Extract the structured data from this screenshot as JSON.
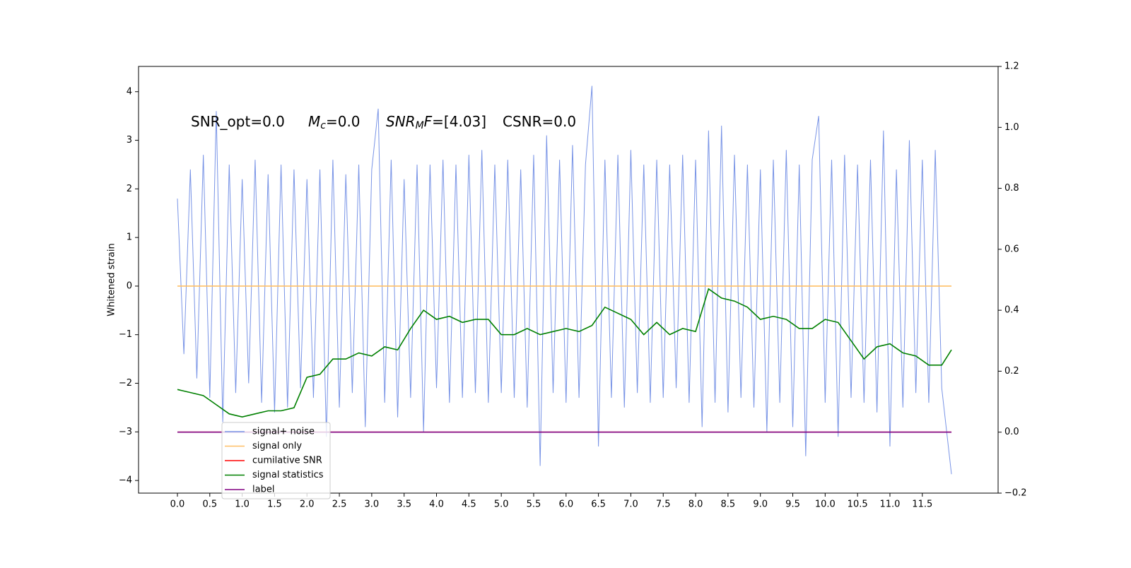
{
  "chart_data": {
    "type": "line",
    "ylabel": "Whitened strain",
    "annotations": [
      {
        "text": "SNR_opt=0.0"
      },
      {
        "main": "M",
        "sub": "c",
        "rest": "=0.0"
      },
      {
        "main": "SNR",
        "sub": "M",
        "main2": "F",
        "rest": "=[4.03]"
      },
      {
        "text": "CSNR=0.0"
      }
    ],
    "xlim": [
      -0.6,
      12.67
    ],
    "xticks": [
      {
        "value": 0,
        "label": "0.0"
      },
      {
        "value": 0.5,
        "label": "0.5"
      },
      {
        "value": 1,
        "label": "1.0"
      },
      {
        "value": 1.5,
        "label": "1.5"
      },
      {
        "value": 2,
        "label": "2.0"
      },
      {
        "value": 2.5,
        "label": "2.5"
      },
      {
        "value": 3,
        "label": "3.0"
      },
      {
        "value": 3.5,
        "label": "3.5"
      },
      {
        "value": 4,
        "label": "4.0"
      },
      {
        "value": 4.5,
        "label": "4.5"
      },
      {
        "value": 5,
        "label": "5.0"
      },
      {
        "value": 5.5,
        "label": "5.5"
      },
      {
        "value": 6,
        "label": "6.0"
      },
      {
        "value": 6.5,
        "label": "6.5"
      },
      {
        "value": 7,
        "label": "7.0"
      },
      {
        "value": 7.5,
        "label": "7.5"
      },
      {
        "value": 8,
        "label": "8.0"
      },
      {
        "value": 8.5,
        "label": "8.5"
      },
      {
        "value": 9,
        "label": "9.0"
      },
      {
        "value": 9.5,
        "label": "9.5"
      },
      {
        "value": 10,
        "label": "10.0"
      },
      {
        "value": 10.5,
        "label": "10.5"
      },
      {
        "value": 11,
        "label": "11.0"
      },
      {
        "value": 11.5,
        "label": "11.5"
      }
    ],
    "ylim": [
      -4.26,
      4.52
    ],
    "yticks": [
      {
        "value": -4,
        "label": "−4"
      },
      {
        "value": -3,
        "label": "−3"
      },
      {
        "value": -2,
        "label": "−2"
      },
      {
        "value": -1,
        "label": "−1"
      },
      0,
      1,
      2,
      3,
      4
    ],
    "y2lim": [
      -0.2,
      1.2
    ],
    "y2ticks": [
      {
        "value": -0.2,
        "label": "−0.2"
      },
      {
        "value": 0,
        "label": "0.0"
      },
      0.2,
      0.4,
      0.6,
      0.8,
      {
        "value": 1,
        "label": "1.0"
      },
      1.2
    ],
    "legend": "lower-left",
    "series": [
      {
        "name": "signal+ noise",
        "color": "#7994e6",
        "x": [
          0,
          0.1,
          0.2,
          0.3,
          0.4,
          0.5,
          0.6,
          0.7,
          0.8,
          0.9,
          1,
          1.1,
          1.2,
          1.3,
          1.4,
          1.5,
          1.6,
          1.7,
          1.8,
          1.9,
          2,
          2.1,
          2.2,
          2.3,
          2.4,
          2.5,
          2.6,
          2.7,
          2.8,
          2.9,
          3,
          3.1,
          3.2,
          3.3,
          3.4,
          3.5,
          3.6,
          3.7,
          3.8,
          3.9,
          4,
          4.1,
          4.2,
          4.3,
          4.4,
          4.5,
          4.6,
          4.7,
          4.8,
          4.9,
          5,
          5.1,
          5.2,
          5.3,
          5.4,
          5.5,
          5.6,
          5.7,
          5.8,
          5.9,
          6,
          6.1,
          6.2,
          6.3,
          6.4,
          6.5,
          6.6,
          6.7,
          6.8,
          6.9,
          7,
          7.1,
          7.2,
          7.3,
          7.4,
          7.5,
          7.6,
          7.7,
          7.8,
          7.9,
          8,
          8.1,
          8.2,
          8.3,
          8.4,
          8.5,
          8.6,
          8.7,
          8.8,
          8.9,
          9,
          9.1,
          9.2,
          9.3,
          9.4,
          9.5,
          9.6,
          9.7,
          9.8,
          9.9,
          10,
          10.1,
          10.2,
          10.3,
          10.4,
          10.5,
          10.6,
          10.7,
          10.8,
          10.9,
          11,
          11.1,
          11.2,
          11.3,
          11.4,
          11.5,
          11.6,
          11.7,
          11.8,
          11.95
        ],
        "values": [
          1.8,
          -1.4,
          2.4,
          -1.9,
          2.7,
          -2.3,
          3.6,
          -2.8,
          2.5,
          -2.2,
          2.2,
          -2.0,
          2.6,
          -2.4,
          2.3,
          -2.6,
          2.5,
          -2.5,
          2.4,
          -2.1,
          2.2,
          -2.3,
          2.4,
          -3.1,
          2.6,
          -2.5,
          2.3,
          -2.2,
          2.5,
          -2.9,
          2.4,
          3.65,
          -2.4,
          2.6,
          -2.7,
          2.2,
          -2.3,
          2.5,
          -3.0,
          2.5,
          -2.1,
          2.6,
          -2.4,
          2.5,
          -2.3,
          2.7,
          -2.2,
          2.8,
          -2.4,
          2.5,
          -2.2,
          2.6,
          -2.3,
          2.4,
          -2.5,
          2.7,
          -3.7,
          3.1,
          -2.2,
          2.6,
          -2.4,
          2.9,
          -2.3,
          2.5,
          4.12,
          -3.3,
          2.6,
          -2.3,
          2.7,
          -2.5,
          2.8,
          -2.2,
          2.5,
          -2.4,
          2.6,
          -2.3,
          2.5,
          -2.1,
          2.7,
          -2.4,
          2.6,
          -2.9,
          3.2,
          -2.4,
          3.3,
          -2.6,
          2.7,
          -2.3,
          2.5,
          -2.5,
          2.4,
          -3.0,
          2.6,
          -2.4,
          2.8,
          -2.9,
          2.5,
          -3.5,
          2.6,
          3.5,
          -2.4,
          2.6,
          -3.1,
          2.7,
          -2.3,
          2.5,
          -2.4,
          2.6,
          -2.6,
          3.2,
          -3.3,
          2.4,
          -2.5,
          3.0,
          -2.2,
          2.6,
          -2.4,
          2.8,
          -2.1,
          -3.87
        ]
      },
      {
        "name": "signal only",
        "color": "#ffbf66",
        "x": [
          0,
          11.95
        ],
        "values": [
          0,
          0
        ]
      },
      {
        "name": "cumilative SNR",
        "color": "#ff0000",
        "axis": "y2",
        "x": [
          0,
          11.95
        ],
        "values": [
          0,
          0
        ]
      },
      {
        "name": "signal statistics",
        "color": "#008000",
        "axis": "y2",
        "x": [
          0,
          0.2,
          0.4,
          0.6,
          0.8,
          1,
          1.2,
          1.4,
          1.6,
          1.8,
          2,
          2.2,
          2.4,
          2.6,
          2.8,
          3,
          3.2,
          3.4,
          3.6,
          3.8,
          4,
          4.2,
          4.4,
          4.6,
          4.8,
          5,
          5.2,
          5.4,
          5.6,
          5.8,
          6,
          6.2,
          6.4,
          6.6,
          6.8,
          7,
          7.2,
          7.4,
          7.6,
          7.8,
          8,
          8.2,
          8.4,
          8.6,
          8.8,
          9,
          9.2,
          9.4,
          9.6,
          9.8,
          10,
          10.2,
          10.4,
          10.6,
          10.8,
          11,
          11.2,
          11.4,
          11.6,
          11.8,
          11.95
        ],
        "values": [
          0.14,
          0.13,
          0.12,
          0.09,
          0.06,
          0.05,
          0.06,
          0.07,
          0.07,
          0.08,
          0.18,
          0.19,
          0.24,
          0.24,
          0.26,
          0.25,
          0.28,
          0.27,
          0.34,
          0.4,
          0.37,
          0.38,
          0.36,
          0.37,
          0.37,
          0.32,
          0.32,
          0.34,
          0.32,
          0.33,
          0.34,
          0.33,
          0.35,
          0.41,
          0.39,
          0.37,
          0.32,
          0.36,
          0.32,
          0.34,
          0.33,
          0.47,
          0.44,
          0.43,
          0.41,
          0.37,
          0.38,
          0.37,
          0.34,
          0.34,
          0.37,
          0.36,
          0.3,
          0.24,
          0.28,
          0.29,
          0.26,
          0.25,
          0.22,
          0.22,
          0.27
        ]
      },
      {
        "name": "label",
        "color": "#800080",
        "axis": "y2",
        "x": [
          0,
          11.95
        ],
        "values": [
          0,
          0
        ]
      }
    ]
  }
}
